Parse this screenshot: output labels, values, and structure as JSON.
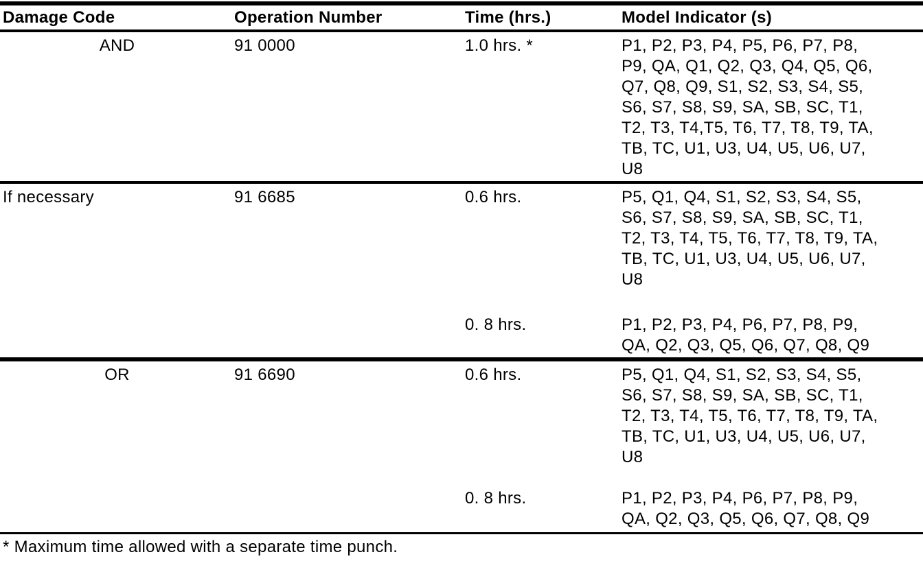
{
  "colors": {
    "text": "#000000",
    "background": "#ffffff",
    "rule": "#000000"
  },
  "table": {
    "headers": {
      "damage_code": "Damage Code",
      "operation_number": "Operation Number",
      "time": "Time (hrs.)",
      "model_indicator": "Model Indicator (s)"
    },
    "rows": [
      {
        "damage_code": "AND",
        "operation_number": "91 0000",
        "entries": [
          {
            "time": "1.0 hrs. *",
            "models": "P1, P2, P3, P4, P5, P6, P7, P8,\nP9, QA, Q1, Q2, Q3, Q4, Q5, Q6,\nQ7, Q8, Q9, S1, S2, S3, S4, S5,\nS6, S7, S8, S9, SA, SB, SC, T1,\nT2, T3, T4,T5, T6, T7, T8, T9, TA,\nTB, TC, U1, U3, U4, U5, U6, U7,\nU8"
          }
        ]
      },
      {
        "damage_code": "If necessary",
        "operation_number": "91 6685",
        "entries": [
          {
            "time": "0.6 hrs.",
            "models": "P5, Q1, Q4, S1, S2, S3, S4, S5,\nS6, S7, S8, S9, SA, SB, SC, T1,\nT2, T3, T4, T5, T6, T7, T8, T9, TA,\nTB, TC, U1, U3, U4, U5, U6, U7,\nU8"
          },
          {
            "time": "0. 8 hrs.",
            "models": "P1, P2, P3, P4, P6, P7, P8, P9,\nQA, Q2, Q3, Q5, Q6, Q7, Q8, Q9"
          }
        ]
      },
      {
        "damage_code": "OR",
        "operation_number": "91 6690",
        "entries": [
          {
            "time": "0.6 hrs.",
            "models": "P5, Q1, Q4, S1, S2, S3, S4, S5,\nS6, S7, S8, S9, SA, SB, SC, T1,\nT2, T3, T4, T5, T6, T7, T8, T9, TA,\nTB, TC, U1, U3, U4, U5, U6, U7,\nU8"
          },
          {
            "time": "0. 8 hrs.",
            "models": "P1, P2, P3, P4, P6, P7, P8, P9,\nQA, Q2, Q3, Q5, Q6, Q7, Q8, Q9"
          }
        ]
      }
    ],
    "footnote": "* Maximum time allowed with a separate time punch."
  }
}
